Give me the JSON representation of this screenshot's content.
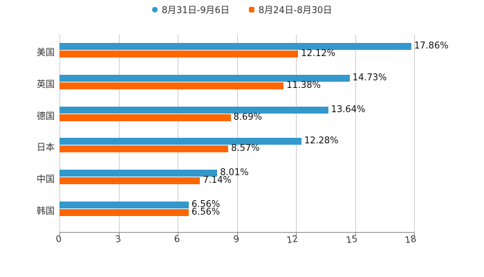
{
  "legend": [
    {
      "label": "8月31日-9月6日",
      "color": "#3399cc",
      "shape": "circle"
    },
    {
      "label": "8月24日-8月30日",
      "color": "#ff6600",
      "shape": "square"
    }
  ],
  "chart_data": {
    "type": "bar",
    "orientation": "horizontal",
    "title": "",
    "xlabel": "",
    "ylabel": "",
    "xlim": [
      0,
      18
    ],
    "xticks": [
      0,
      3,
      6,
      9,
      12,
      15,
      18
    ],
    "grid": true,
    "legend_position": "top",
    "categories": [
      "美国",
      "英国",
      "德国",
      "日本",
      "中国",
      "韩国"
    ],
    "series": [
      {
        "name": "8月31日-9月6日",
        "color": "#3399cc",
        "values": [
          17.86,
          14.73,
          13.64,
          12.28,
          8.01,
          6.56
        ],
        "labels": [
          "17.86%",
          "14.73%",
          "13.64%",
          "12.28%",
          "8.01%",
          "6.56%"
        ]
      },
      {
        "name": "8月24日-8月30日",
        "color": "#ff6600",
        "values": [
          12.12,
          11.38,
          8.69,
          8.57,
          7.14,
          6.56
        ],
        "labels": [
          "12.12%",
          "11.38%",
          "8.69%",
          "8.57%",
          "7.14%",
          "6.56%"
        ]
      }
    ]
  }
}
